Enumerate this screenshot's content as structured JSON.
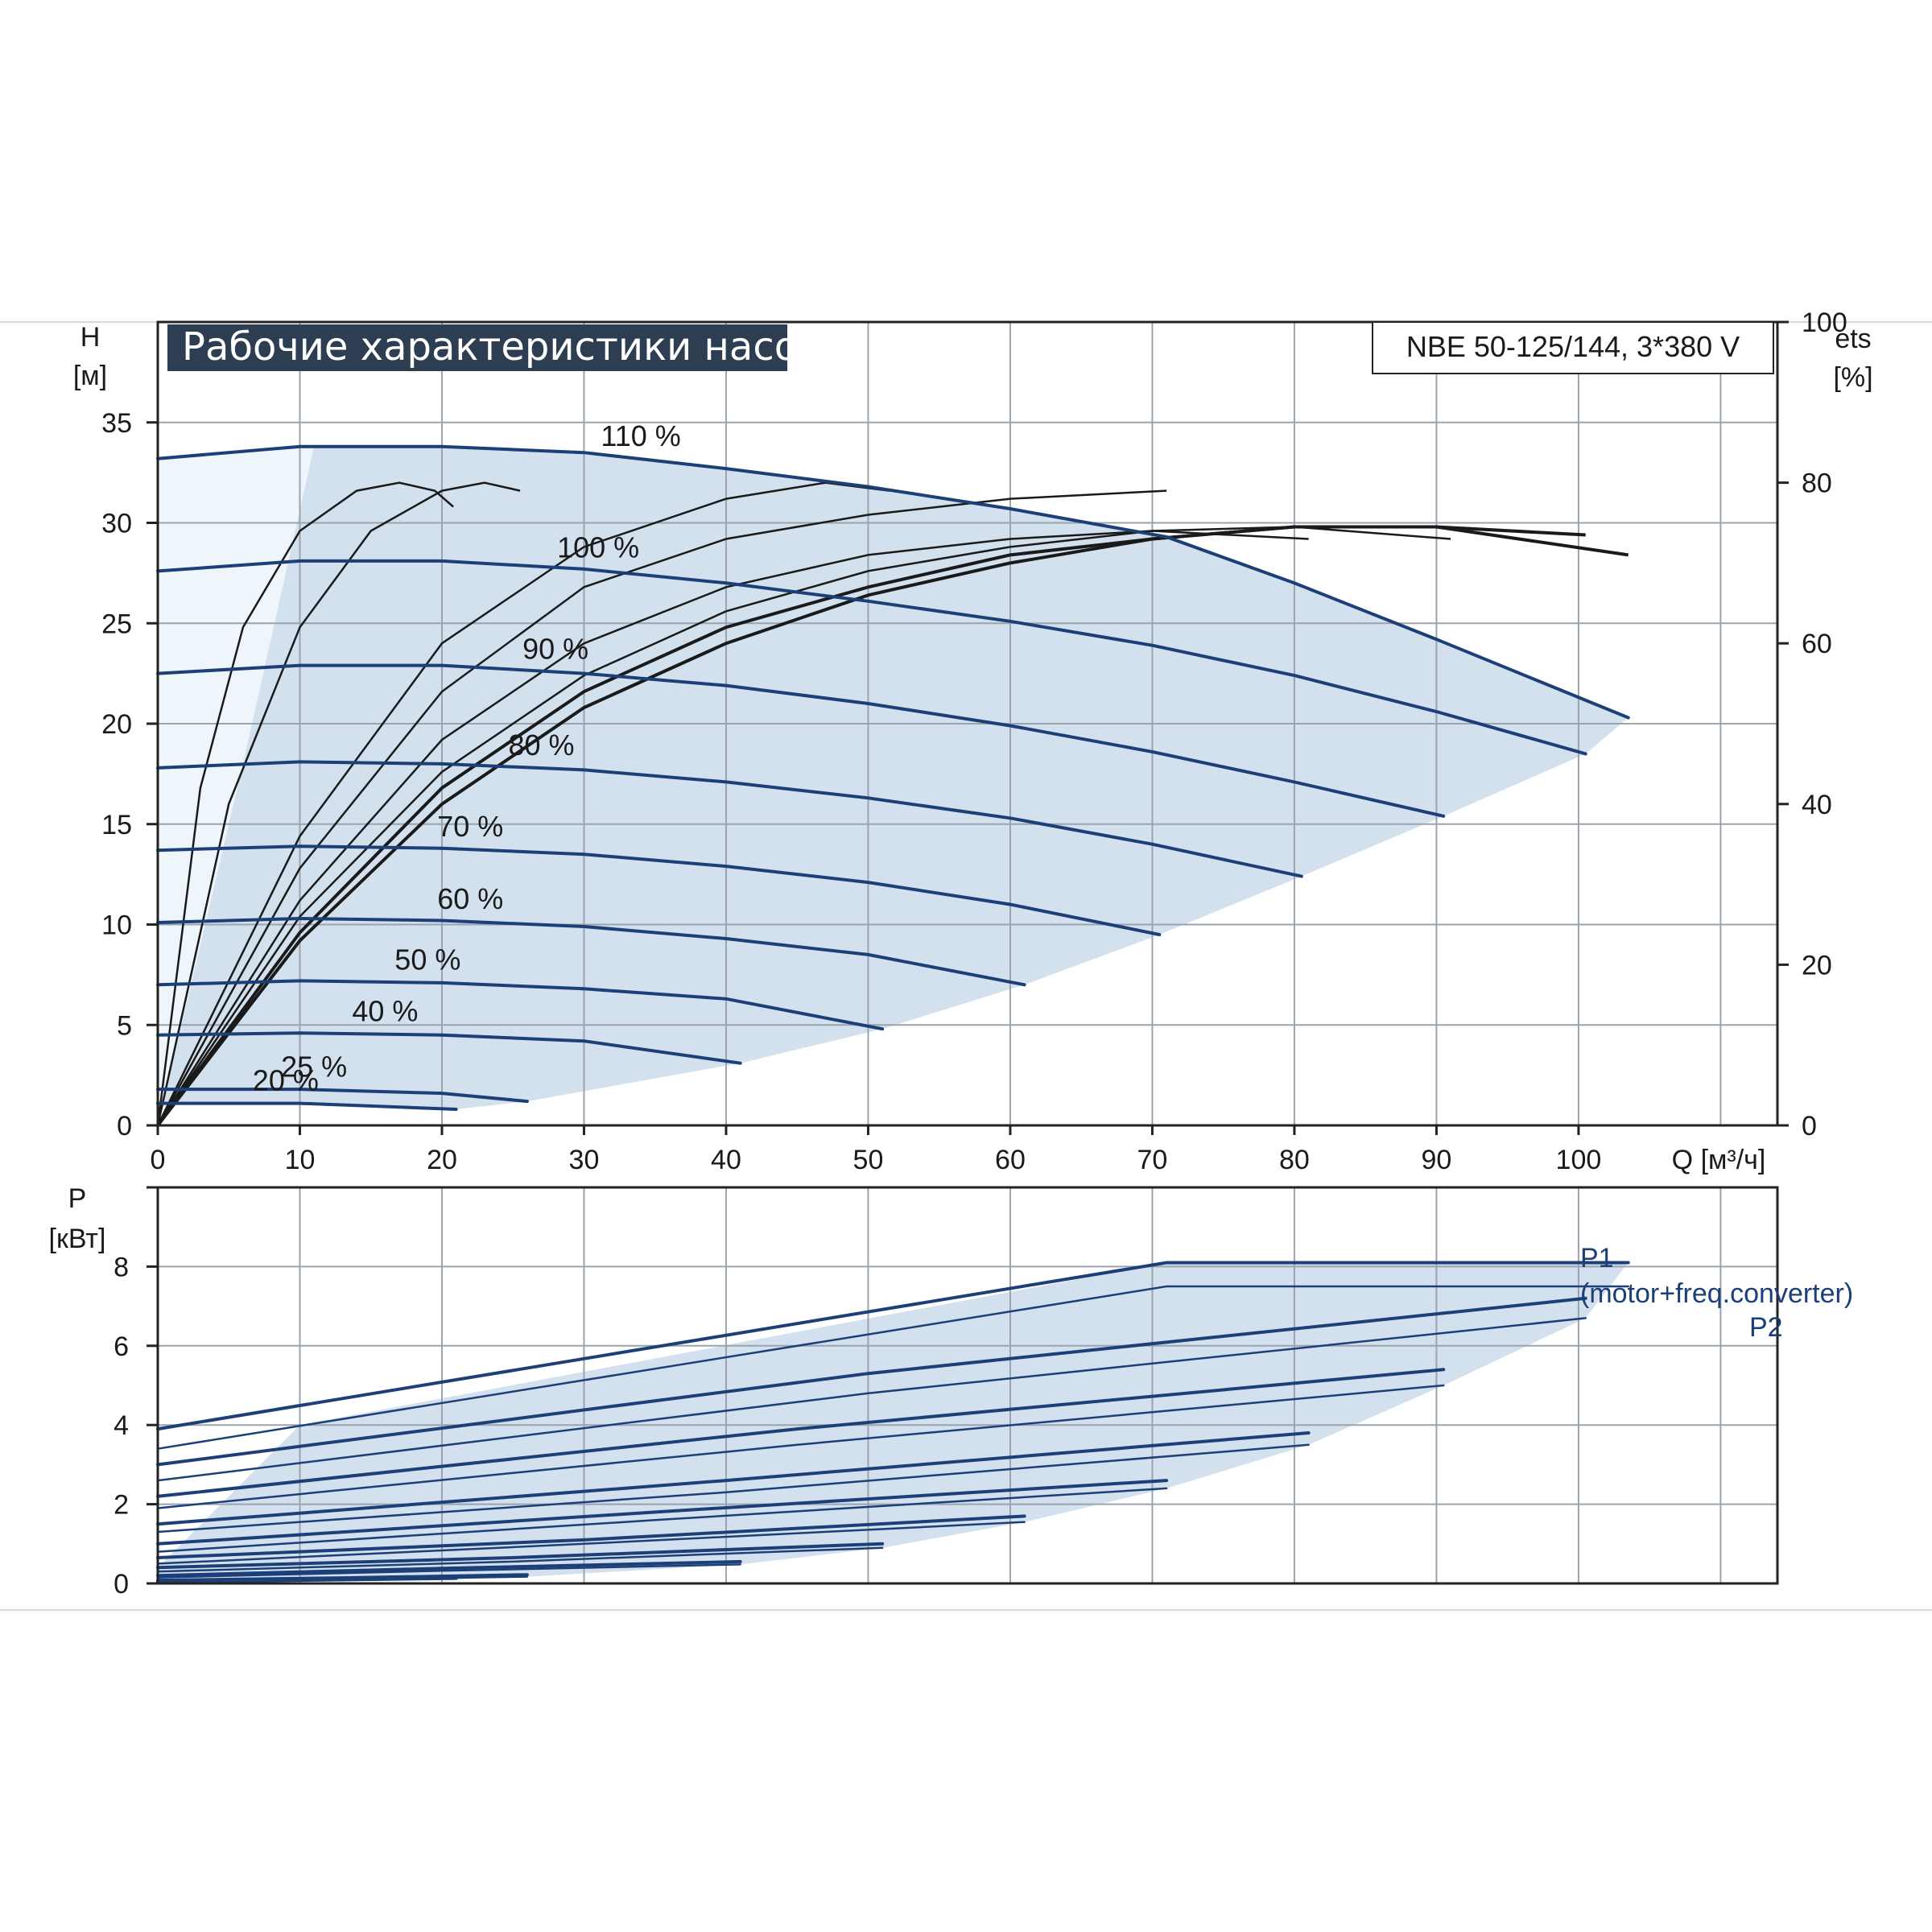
{
  "chart_data": [
    {
      "type": "line",
      "title": "Рабочие характеристики насоса",
      "model": "NBE 50-125/144, 3*380 V",
      "xlabel": "Q [м³/ч]",
      "ylabel_top": "H",
      "ylabel_bottom": "[м]",
      "y2label_top": "ets",
      "y2label_bottom": "[%]",
      "xlim": [
        0,
        114
      ],
      "ylim": [
        0,
        40
      ],
      "y2lim": [
        0,
        100
      ],
      "x_ticks": [
        "0",
        "10",
        "20",
        "30",
        "40",
        "50",
        "60",
        "70",
        "80",
        "90",
        "100"
      ],
      "y_ticks": [
        "0",
        "5",
        "10",
        "15",
        "20",
        "25",
        "30",
        "35"
      ],
      "y2_ticks": [
        "0",
        "20",
        "40",
        "60",
        "80",
        "100"
      ],
      "grid": true,
      "colors": {
        "curve": "#1d3f78",
        "area": "#d3e1ee",
        "area_light": "#eef5fb",
        "efficiency": "#1a1a1a",
        "title_bg": "#2e3e52"
      },
      "series": [
        {
          "name": "110 %",
          "x": [
            0,
            10,
            20,
            30,
            40,
            50,
            60,
            71,
            80,
            90,
            103.5
          ],
          "y": [
            33.2,
            33.8,
            33.8,
            33.5,
            32.7,
            31.8,
            30.7,
            29.3,
            27.0,
            24.2,
            20.3
          ]
        },
        {
          "name": "100 %",
          "x": [
            0,
            10,
            20,
            30,
            40,
            50,
            60,
            70,
            80,
            90,
            100.5
          ],
          "y": [
            27.6,
            28.1,
            28.1,
            27.7,
            27.0,
            26.1,
            25.1,
            23.9,
            22.4,
            20.6,
            18.5
          ]
        },
        {
          "name": "90 %",
          "x": [
            0,
            10,
            20,
            30,
            40,
            50,
            60,
            70,
            80,
            90.5
          ],
          "y": [
            22.5,
            22.9,
            22.9,
            22.5,
            21.9,
            21.0,
            19.9,
            18.6,
            17.1,
            15.4
          ]
        },
        {
          "name": "80 %",
          "x": [
            0,
            10,
            20,
            30,
            40,
            50,
            60,
            70,
            80.5
          ],
          "y": [
            17.8,
            18.1,
            18.0,
            17.7,
            17.1,
            16.3,
            15.3,
            14.0,
            12.4
          ]
        },
        {
          "name": "70 %",
          "x": [
            0,
            10,
            20,
            30,
            40,
            50,
            60,
            70.5
          ],
          "y": [
            13.7,
            13.9,
            13.8,
            13.5,
            12.9,
            12.1,
            11.0,
            9.5
          ]
        },
        {
          "name": "60 %",
          "x": [
            0,
            10,
            20,
            30,
            40,
            50,
            61
          ],
          "y": [
            10.1,
            10.3,
            10.2,
            9.9,
            9.3,
            8.5,
            7.0
          ]
        },
        {
          "name": "50 %",
          "x": [
            0,
            10,
            20,
            30,
            40,
            51
          ],
          "y": [
            7.0,
            7.2,
            7.1,
            6.8,
            6.3,
            4.8
          ]
        },
        {
          "name": "40 %",
          "x": [
            0,
            10,
            20,
            30,
            41
          ],
          "y": [
            4.5,
            4.6,
            4.5,
            4.2,
            3.1
          ]
        },
        {
          "name": "25 %",
          "x": [
            0,
            10,
            20,
            26
          ],
          "y": [
            1.8,
            1.8,
            1.6,
            1.2
          ]
        },
        {
          "name": "20 %",
          "x": [
            0,
            10,
            21
          ],
          "y": [
            1.1,
            1.1,
            0.8
          ]
        }
      ],
      "efficiency_curves": [
        {
          "x": [
            0,
            3,
            6,
            10,
            14,
            17,
            19.5,
            20.8
          ],
          "y": [
            0,
            42,
            62,
            74,
            79,
            80,
            79,
            77
          ]
        },
        {
          "x": [
            0,
            5,
            10,
            15,
            20,
            23,
            25.5
          ],
          "y": [
            0,
            40,
            62,
            74,
            79,
            80,
            79
          ]
        },
        {
          "x": [
            0,
            10,
            20,
            30,
            40,
            47,
            51.5
          ],
          "y": [
            0,
            36,
            60,
            72,
            78,
            80,
            79
          ]
        },
        {
          "x": [
            0,
            10,
            20,
            30,
            40,
            50,
            60,
            71
          ],
          "y": [
            0,
            32,
            54,
            67,
            73,
            76,
            78,
            79
          ]
        },
        {
          "x": [
            0,
            10,
            20,
            30,
            40,
            50,
            60,
            70,
            81
          ],
          "y": [
            0,
            28,
            48,
            60,
            67,
            71,
            73,
            74,
            73
          ]
        },
        {
          "x": [
            0,
            10,
            20,
            30,
            40,
            50,
            60,
            70,
            80,
            91
          ],
          "y": [
            0,
            26,
            44,
            56,
            64,
            69,
            72,
            74,
            74.5,
            73
          ]
        },
        {
          "x": [
            0,
            10,
            20,
            30,
            40,
            50,
            60,
            70,
            80,
            90,
            100.5
          ],
          "y": [
            0,
            24,
            42,
            54,
            62,
            67,
            71,
            73,
            74.5,
            74.5,
            73.5
          ]
        },
        {
          "x": [
            0,
            10,
            20,
            30,
            40,
            50,
            60,
            70,
            80,
            90,
            103.5
          ],
          "y": [
            0,
            23,
            40,
            52,
            60,
            66,
            70,
            73,
            74.5,
            74.5,
            71
          ]
        }
      ]
    },
    {
      "type": "line",
      "ylabel_top": "P",
      "ylabel_bottom": "[кВт]",
      "xlim": [
        0,
        114
      ],
      "ylim": [
        0,
        10
      ],
      "y_ticks": [
        "0",
        "2",
        "4",
        "6",
        "8"
      ],
      "grid": true,
      "annotations": [
        "P1",
        "(motor+freq.converter)",
        "P2"
      ],
      "series": [
        {
          "name": "P1",
          "x": [
            0,
            71,
            103.5
          ],
          "y": [
            3.9,
            8.1,
            8.1
          ]
        },
        {
          "x": [
            0,
            71,
            103.5
          ],
          "y": [
            3.4,
            7.5,
            7.5
          ]
        },
        {
          "x": [
            0,
            50,
            100.5
          ],
          "y": [
            3.0,
            5.3,
            7.2
          ]
        },
        {
          "x": [
            0,
            50,
            100.5
          ],
          "y": [
            2.6,
            4.8,
            6.7
          ]
        },
        {
          "x": [
            0,
            45,
            90.5
          ],
          "y": [
            2.2,
            3.9,
            5.4
          ]
        },
        {
          "x": [
            0,
            45,
            90.5
          ],
          "y": [
            1.9,
            3.5,
            5.0
          ]
        },
        {
          "x": [
            0,
            40,
            81
          ],
          "y": [
            1.5,
            2.6,
            3.8
          ]
        },
        {
          "x": [
            0,
            40,
            81
          ],
          "y": [
            1.3,
            2.3,
            3.5
          ]
        },
        {
          "x": [
            0,
            35,
            71
          ],
          "y": [
            1.0,
            1.8,
            2.6
          ]
        },
        {
          "x": [
            0,
            35,
            71
          ],
          "y": [
            0.8,
            1.6,
            2.4
          ]
        },
        {
          "x": [
            0,
            30,
            61
          ],
          "y": [
            0.65,
            1.1,
            1.7
          ]
        },
        {
          "x": [
            0,
            30,
            61
          ],
          "y": [
            0.5,
            1.0,
            1.55
          ]
        },
        {
          "x": [
            0,
            25,
            51
          ],
          "y": [
            0.4,
            0.65,
            1.0
          ]
        },
        {
          "x": [
            0,
            25,
            51
          ],
          "y": [
            0.3,
            0.55,
            0.9
          ]
        },
        {
          "x": [
            0,
            20,
            41
          ],
          "y": [
            0.2,
            0.38,
            0.55
          ]
        },
        {
          "x": [
            0,
            20,
            41
          ],
          "y": [
            0.15,
            0.32,
            0.48
          ]
        },
        {
          "x": [
            0,
            13,
            26
          ],
          "y": [
            0.08,
            0.14,
            0.22
          ]
        },
        {
          "x": [
            0,
            13,
            26
          ],
          "y": [
            0.05,
            0.1,
            0.17
          ]
        },
        {
          "x": [
            0,
            10,
            21
          ],
          "y": [
            0.04,
            0.08,
            0.13
          ]
        }
      ]
    }
  ]
}
